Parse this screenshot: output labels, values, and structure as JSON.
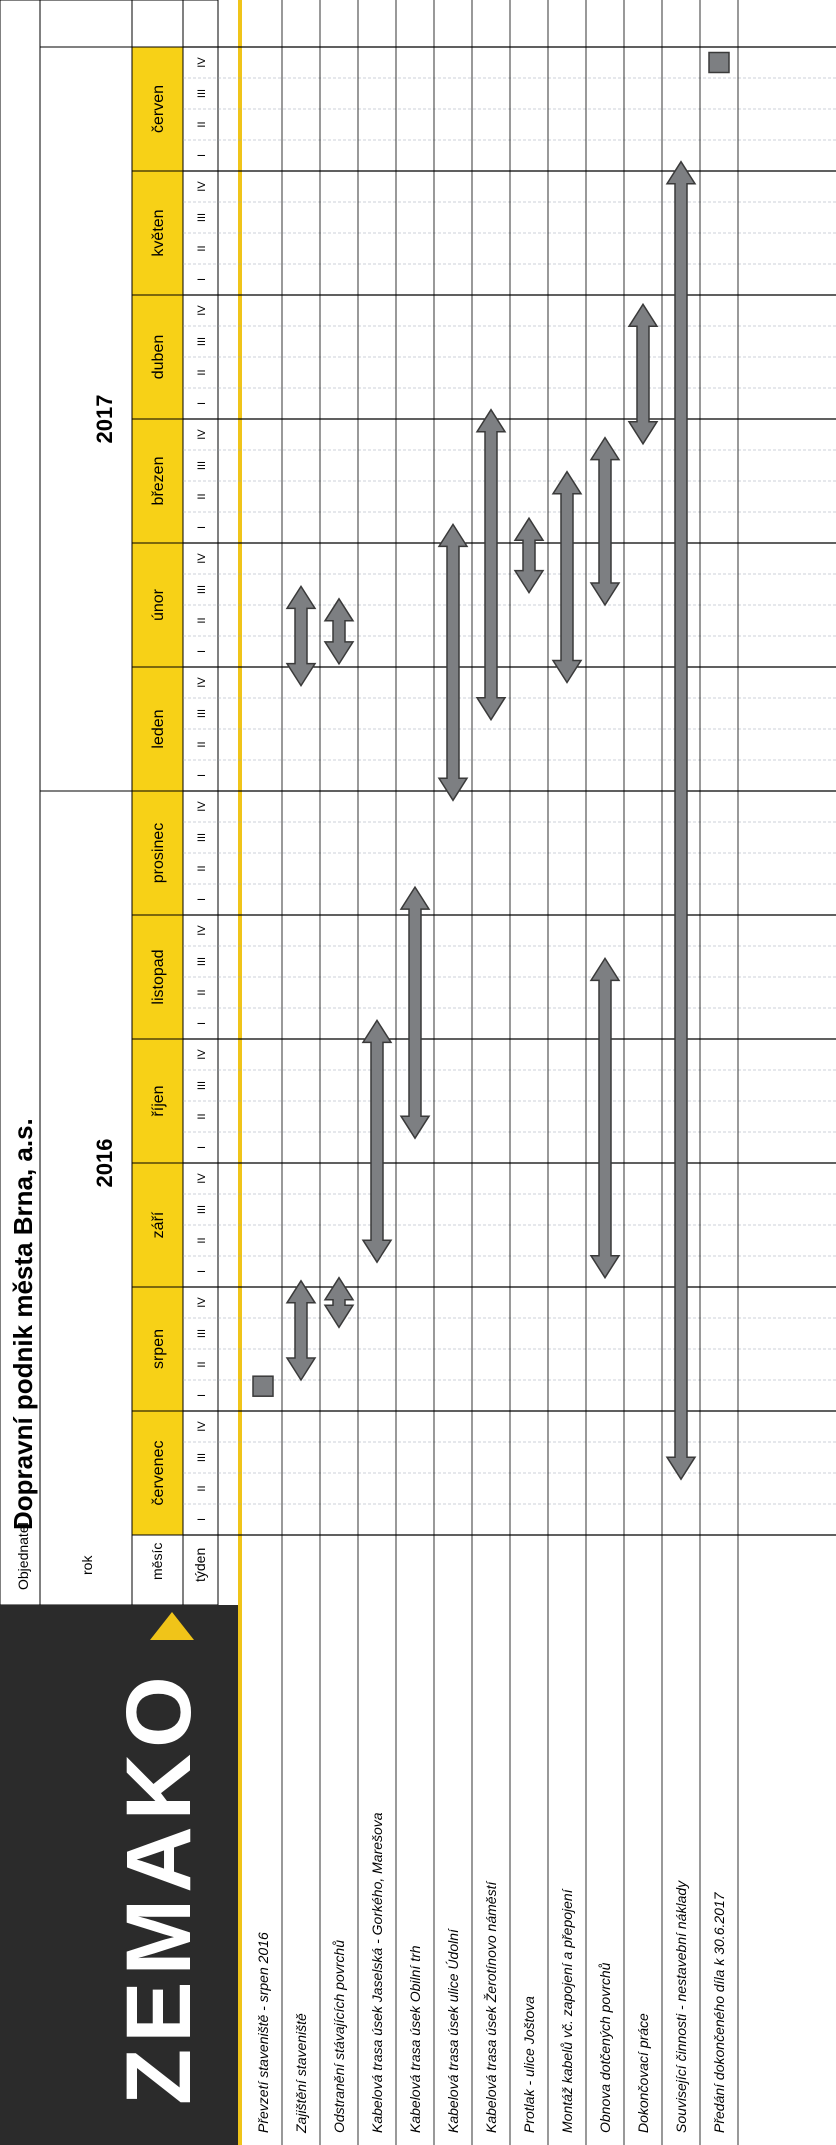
{
  "header": {
    "logo": "ZEMAKO",
    "objednatel_label": "Objednatel",
    "objednatel_value": "Dopravní podnik města Brna, a.s.",
    "rok_label": "rok",
    "mesic_label": "měsíc",
    "tyden_label": "týden"
  },
  "colors": {
    "month_fill": "#f7d117",
    "logo_bg": "#2b2b2b",
    "arrow_fill": "#7d7f82",
    "arrow_stroke": "#3a3a3a",
    "grid": "#9aa6b2",
    "bar_accent": "#f0c419"
  },
  "chart_data": {
    "type": "gantt",
    "years": [
      {
        "label": "2016",
        "weeks": 24
      },
      {
        "label": "2017",
        "weeks": 24
      }
    ],
    "months": [
      "červenec",
      "srpen",
      "září",
      "říjen",
      "listopad",
      "prosinec",
      "leden",
      "únor",
      "březen",
      "duben",
      "květen",
      "červen"
    ],
    "weeks_per_month": 4,
    "week_labels": [
      "I",
      "II",
      "III",
      "IV"
    ],
    "tasks": [
      {
        "label": "Převzetí staveniště  - srpen 2016",
        "kind": "milestone",
        "start_week": 4.8
      },
      {
        "label": "Zajištění staveniště",
        "kind": "range",
        "ranges": [
          [
            5,
            8.2
          ],
          [
            27.4,
            30.6
          ]
        ]
      },
      {
        "label": "Odstranění stávajících povrchů",
        "kind": "range",
        "ranges": [
          [
            6.7,
            8.3
          ],
          [
            28.1,
            30.2
          ]
        ]
      },
      {
        "label": "Kabelová trasa úsek Jaselská - Gorkého, Marešova",
        "kind": "range",
        "ranges": [
          [
            8.8,
            16.6
          ]
        ]
      },
      {
        "label": "Kabelová trasa úsek Obilní trh",
        "kind": "range",
        "ranges": [
          [
            12.8,
            20.9
          ]
        ]
      },
      {
        "label": "Kabelová trasa úsek ulice Údolní",
        "kind": "range",
        "ranges": [
          [
            23.7,
            32.6
          ]
        ]
      },
      {
        "label": "Kabelová trasa úsek Žerotínovo náměstí",
        "kind": "range",
        "ranges": [
          [
            26.3,
            36.3
          ]
        ]
      },
      {
        "label": "Protlak - ulice Joštova",
        "kind": "range",
        "ranges": [
          [
            30.4,
            32.8
          ]
        ]
      },
      {
        "label": "Montáž kabelů vč. zapojení a přepojení",
        "kind": "range",
        "ranges": [
          [
            27.5,
            34.3
          ]
        ]
      },
      {
        "label": "Obnova dotčených povrchů",
        "kind": "range",
        "ranges": [
          [
            8.3,
            18.6
          ],
          [
            30.0,
            35.4
          ]
        ]
      },
      {
        "label": "Dokončovací práce",
        "kind": "range",
        "ranges": [
          [
            35.2,
            39.7
          ]
        ]
      },
      {
        "label": "Související činnosti - nestavební náklady",
        "kind": "range",
        "ranges": [
          [
            1.8,
            44.3
          ]
        ]
      },
      {
        "label": "Předání dokončeného díla k 30.6.2017",
        "kind": "milestone",
        "start_week": 47.5
      }
    ]
  }
}
